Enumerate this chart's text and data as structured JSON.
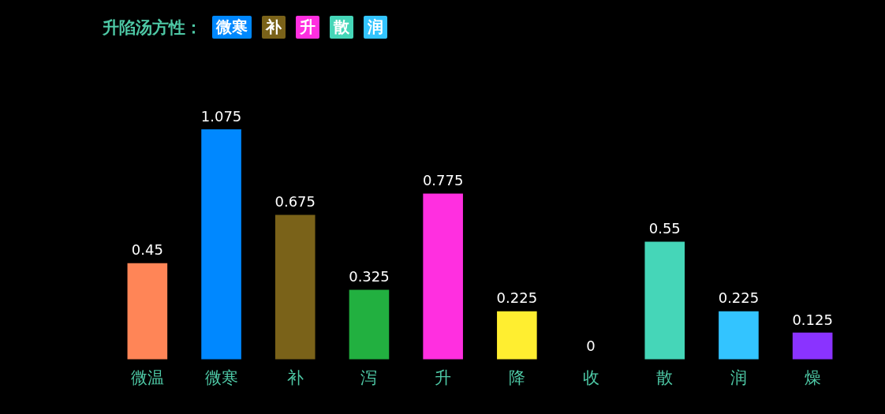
{
  "chart_data": {
    "type": "bar",
    "title": "升陷汤方性：",
    "categories": [
      "微温",
      "微寒",
      "补",
      "泻",
      "升",
      "降",
      "收",
      "散",
      "润",
      "燥"
    ],
    "values": [
      0.45,
      1.075,
      0.675,
      0.325,
      0.775,
      0.225,
      0,
      0.55,
      0.225,
      0.125
    ],
    "colors": [
      "#ff8557",
      "#0088ff",
      "#7a6219",
      "#22b040",
      "#ff2fe0",
      "#ffee30",
      null,
      "#45d6b8",
      "#33c4ff",
      "#8a33ff"
    ],
    "annotations": [
      "微寒",
      "补",
      "升",
      "散",
      "润"
    ],
    "data_labels": true
  }
}
